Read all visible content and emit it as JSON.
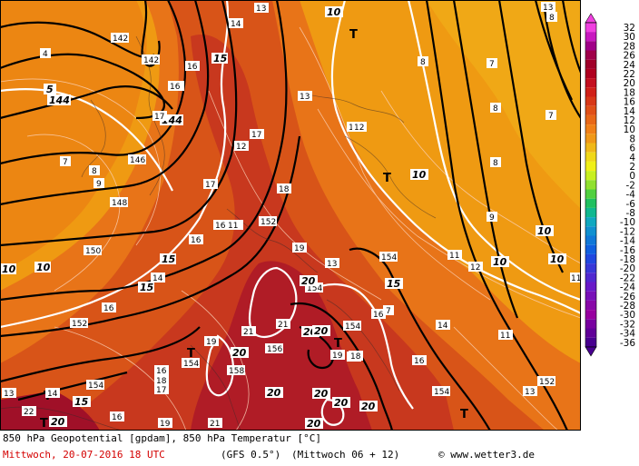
{
  "title": "850 hPa Geopotential [gpdam], 850 hPa Temperatur [°C]",
  "valid_time": "Mittwoch, 20-07-2016  18 UTC",
  "model": "(GFS 0.5°)",
  "run": "(Mittwoch 06 + 12)",
  "credit": "© www.wetter3.de",
  "colors": {
    "cold": "#f0a010",
    "mid": "#e87010",
    "warm": "#d45018",
    "hot": "#c02a20",
    "hottest": "#a01228"
  },
  "scale": {
    "labels": [
      "32",
      "30",
      "28",
      "26",
      "24",
      "22",
      "20",
      "18",
      "16",
      "14",
      "12",
      "10",
      "8",
      "6",
      "4",
      "2",
      "0",
      "-2",
      "-4",
      "-6",
      "-8",
      "-10",
      "-12",
      "-14",
      "-16",
      "-18",
      "-20",
      "-22",
      "-24",
      "-26",
      "-28",
      "-30",
      "-32",
      "-34",
      "-36"
    ],
    "colors": [
      "#f040e0",
      "#c818c0",
      "#a00088",
      "#a0004a",
      "#a0002a",
      "#b00020",
      "#c41020",
      "#d02018",
      "#d83818",
      "#e05018",
      "#e86818",
      "#f08018",
      "#f09818",
      "#f0b818",
      "#f0d818",
      "#f0f018",
      "#c8f020",
      "#90e030",
      "#50d040",
      "#20c060",
      "#10b890",
      "#10a8c0",
      "#1090d0",
      "#1078d8",
      "#1060e0",
      "#2048e0",
      "#3838d8",
      "#5028d0",
      "#6818c8",
      "#7810b8",
      "#8808a8",
      "#9800a0",
      "#7800a0",
      "#600098",
      "#480090"
    ]
  },
  "geopotential_labels": [
    {
      "text": "142"
    },
    {
      "text": "142"
    },
    {
      "text": "144"
    },
    {
      "text": "144"
    },
    {
      "text": "146"
    },
    {
      "text": "148"
    },
    {
      "text": "150"
    },
    {
      "text": "152"
    },
    {
      "text": "152"
    },
    {
      "text": "154"
    },
    {
      "text": "154"
    },
    {
      "text": "154"
    },
    {
      "text": "154"
    },
    {
      "text": "154"
    },
    {
      "text": "156"
    },
    {
      "text": "158"
    },
    {
      "text": "152"
    },
    {
      "text": "154"
    }
  ],
  "temperature_labels": [
    {
      "text": "4"
    },
    {
      "text": "5"
    },
    {
      "text": "7"
    },
    {
      "text": "8"
    },
    {
      "text": "9"
    },
    {
      "text": "10"
    },
    {
      "text": "10"
    },
    {
      "text": "13"
    },
    {
      "text": "14"
    },
    {
      "text": "15"
    },
    {
      "text": "15"
    },
    {
      "text": "15"
    },
    {
      "text": "16"
    },
    {
      "text": "16"
    },
    {
      "text": "16"
    },
    {
      "text": "16"
    },
    {
      "text": "17"
    },
    {
      "text": "17"
    },
    {
      "text": "17"
    },
    {
      "text": "18"
    },
    {
      "text": "18"
    },
    {
      "text": "19"
    },
    {
      "text": "19"
    },
    {
      "text": "20"
    },
    {
      "text": "20"
    },
    {
      "text": "20"
    },
    {
      "text": "20"
    },
    {
      "text": "21"
    },
    {
      "text": "21"
    },
    {
      "text": "21"
    },
    {
      "text": "13"
    },
    {
      "text": "12"
    },
    {
      "text": "11"
    },
    {
      "text": "10"
    },
    {
      "text": "10"
    },
    {
      "text": "10"
    },
    {
      "text": "10"
    },
    {
      "text": "10"
    },
    {
      "text": "13"
    },
    {
      "text": "8"
    },
    {
      "text": "7"
    },
    {
      "text": "8"
    },
    {
      "text": "8"
    },
    {
      "text": "7"
    },
    {
      "text": "9"
    },
    {
      "text": "11"
    },
    {
      "text": "12"
    },
    {
      "text": "11"
    },
    {
      "text": "8"
    },
    {
      "text": "13"
    },
    {
      "text": "14"
    },
    {
      "text": "16"
    },
    {
      "text": "11"
    },
    {
      "text": "15"
    },
    {
      "text": "13"
    },
    {
      "text": "16"
    },
    {
      "text": "18"
    },
    {
      "text": "19"
    },
    {
      "text": "20"
    },
    {
      "text": "7"
    },
    {
      "text": "16"
    },
    {
      "text": "14"
    },
    {
      "text": "12"
    },
    {
      "text": "16"
    },
    {
      "text": "18"
    },
    {
      "text": "16"
    },
    {
      "text": "17"
    },
    {
      "text": "19"
    },
    {
      "text": "16"
    },
    {
      "text": "13"
    },
    {
      "text": "11"
    },
    {
      "text": "12"
    },
    {
      "text": "14"
    },
    {
      "text": "20"
    },
    {
      "text": "20"
    },
    {
      "text": "15"
    },
    {
      "text": "22"
    },
    {
      "text": "20"
    },
    {
      "text": "20"
    },
    {
      "text": "20"
    }
  ],
  "pressure_centers": [
    {
      "text": "T"
    },
    {
      "text": "T"
    },
    {
      "text": "T"
    },
    {
      "text": "T"
    },
    {
      "text": "T"
    },
    {
      "text": "T"
    },
    {
      "text": "T"
    },
    {
      "text": "T"
    }
  ]
}
